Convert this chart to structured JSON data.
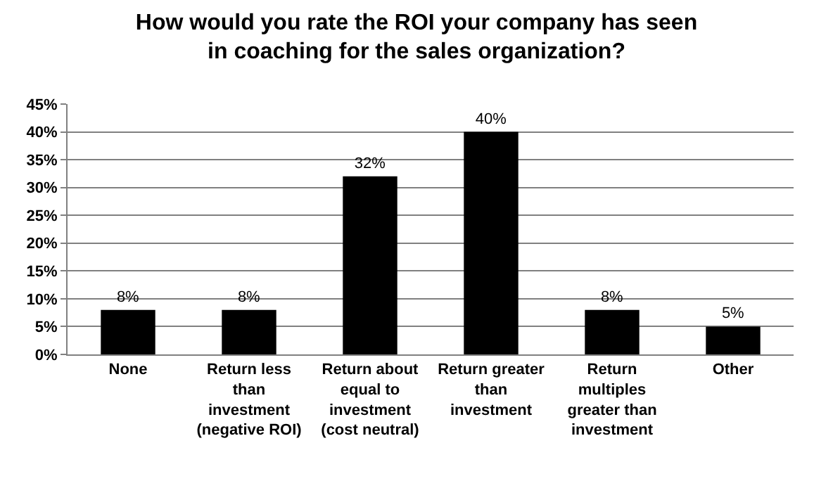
{
  "chart_data": {
    "type": "bar",
    "title": "How would you rate the ROI your company has seen in coaching for the sales organization?",
    "categories": [
      "None",
      "Return less than investment (negative ROI)",
      "Return about equal to investment (cost neutral)",
      "Return greater than investment",
      "Return multiples greater than investment",
      "Other"
    ],
    "values": [
      8,
      8,
      32,
      40,
      8,
      5
    ],
    "value_labels": [
      "8%",
      "8%",
      "32%",
      "40%",
      "8%",
      "5%"
    ],
    "color": "#000000",
    "ylim": [
      0,
      45
    ],
    "yticks": [
      {
        "value": 0,
        "label": "0%"
      },
      {
        "value": 5,
        "label": "5%"
      },
      {
        "value": 10,
        "label": "10%"
      },
      {
        "value": 15,
        "label": "15%"
      },
      {
        "value": 20,
        "label": "20%"
      },
      {
        "value": 25,
        "label": "25%"
      },
      {
        "value": 30,
        "label": "30%"
      },
      {
        "value": 35,
        "label": "35%"
      },
      {
        "value": 40,
        "label": "40%"
      },
      {
        "value": 45,
        "label": "45%"
      }
    ],
    "grid": "y"
  }
}
